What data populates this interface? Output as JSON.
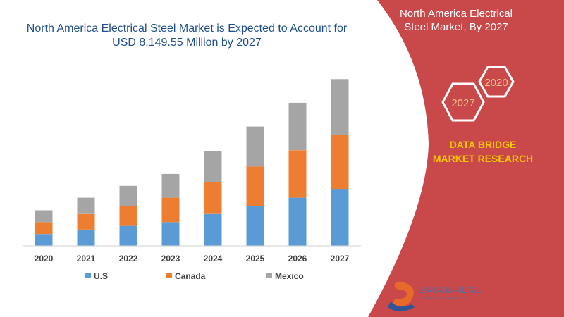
{
  "header": {
    "title": "North America Electrical Steel Market is Expected to Account for USD 8,149.55 Million by 2027"
  },
  "side_panel": {
    "title": "North America Electrical Steel Market, By 2027",
    "hex_2020": "2020",
    "hex_2027": "2027",
    "brand": "DATA BRIDGE MARKET RESEARCH",
    "panel_color": "#c9484a",
    "brand_color": "#f7c600",
    "hex_outline_color": "#ffffff",
    "hex_text_color": "#f2c58a"
  },
  "logo": {
    "name": "DATA BRIDGE",
    "subtitle": "MARKET RESEARCH",
    "icon": "data-bridge-logo-icon"
  },
  "chart_data": {
    "type": "bar",
    "stacked": true,
    "categories": [
      "2020",
      "2021",
      "2022",
      "2023",
      "2024",
      "2025",
      "2026",
      "2027"
    ],
    "series": [
      {
        "name": "U.S",
        "color": "#5b9bd5",
        "values": [
          16,
          22,
          27,
          32,
          43,
          54,
          65,
          76
        ]
      },
      {
        "name": "Canada",
        "color": "#ed7d31",
        "values": [
          16,
          21,
          27,
          33,
          43,
          53,
          64,
          74
        ]
      },
      {
        "name": "Mexico",
        "color": "#a5a5a5",
        "values": [
          16,
          22,
          27,
          32,
          42,
          54,
          64,
          75
        ]
      }
    ],
    "legend_position": "bottom",
    "grid": false,
    "y_axis_visible": false,
    "ylim": [
      0,
      230
    ]
  }
}
